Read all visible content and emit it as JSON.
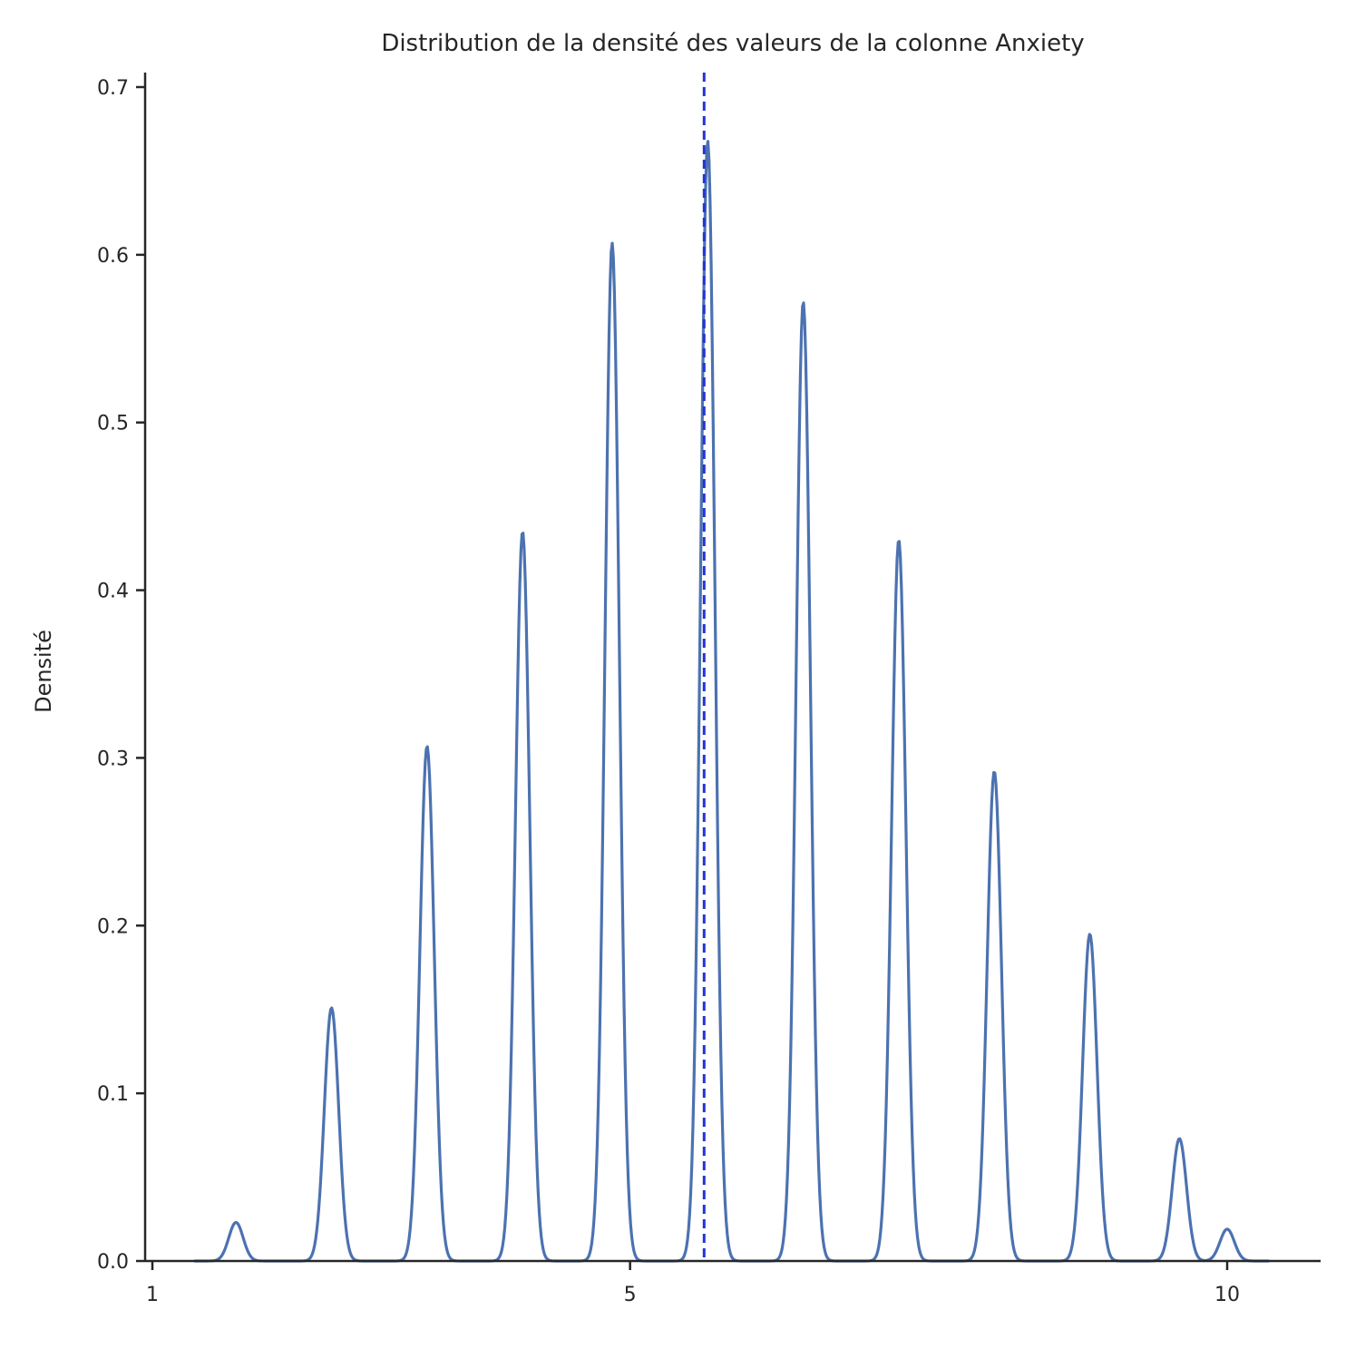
{
  "chart_data": {
    "type": "line",
    "title": "Distribution de la densité des valeurs de la colonne Anxiety",
    "xlabel": "",
    "ylabel": "Densité",
    "xlim": [
      0.95,
      10.8
    ],
    "ylim": [
      0,
      0.707
    ],
    "x_ticks": [
      1,
      5,
      10
    ],
    "y_ticks": [
      0.0,
      0.1,
      0.2,
      0.3,
      0.4,
      0.5,
      0.6,
      0.7
    ],
    "grid": false,
    "series": [
      {
        "style": "solid",
        "color": "#4c72b0",
        "peaks": [
          {
            "x": 1.7,
            "y": 0.023
          },
          {
            "x": 2.5,
            "y": 0.151
          },
          {
            "x": 3.3,
            "y": 0.307
          },
          {
            "x": 4.1,
            "y": 0.435
          },
          {
            "x": 4.85,
            "y": 0.607
          },
          {
            "x": 5.65,
            "y": 0.668
          },
          {
            "x": 6.45,
            "y": 0.572
          },
          {
            "x": 7.25,
            "y": 0.43
          },
          {
            "x": 8.05,
            "y": 0.292
          },
          {
            "x": 8.85,
            "y": 0.195
          },
          {
            "x": 9.6,
            "y": 0.073
          },
          {
            "x": 10.0,
            "y": 0.019
          }
        ],
        "peak_width": 0.06
      }
    ],
    "reference_line": {
      "x": 5.62,
      "color": "#2433d6",
      "style": "dashed"
    }
  }
}
